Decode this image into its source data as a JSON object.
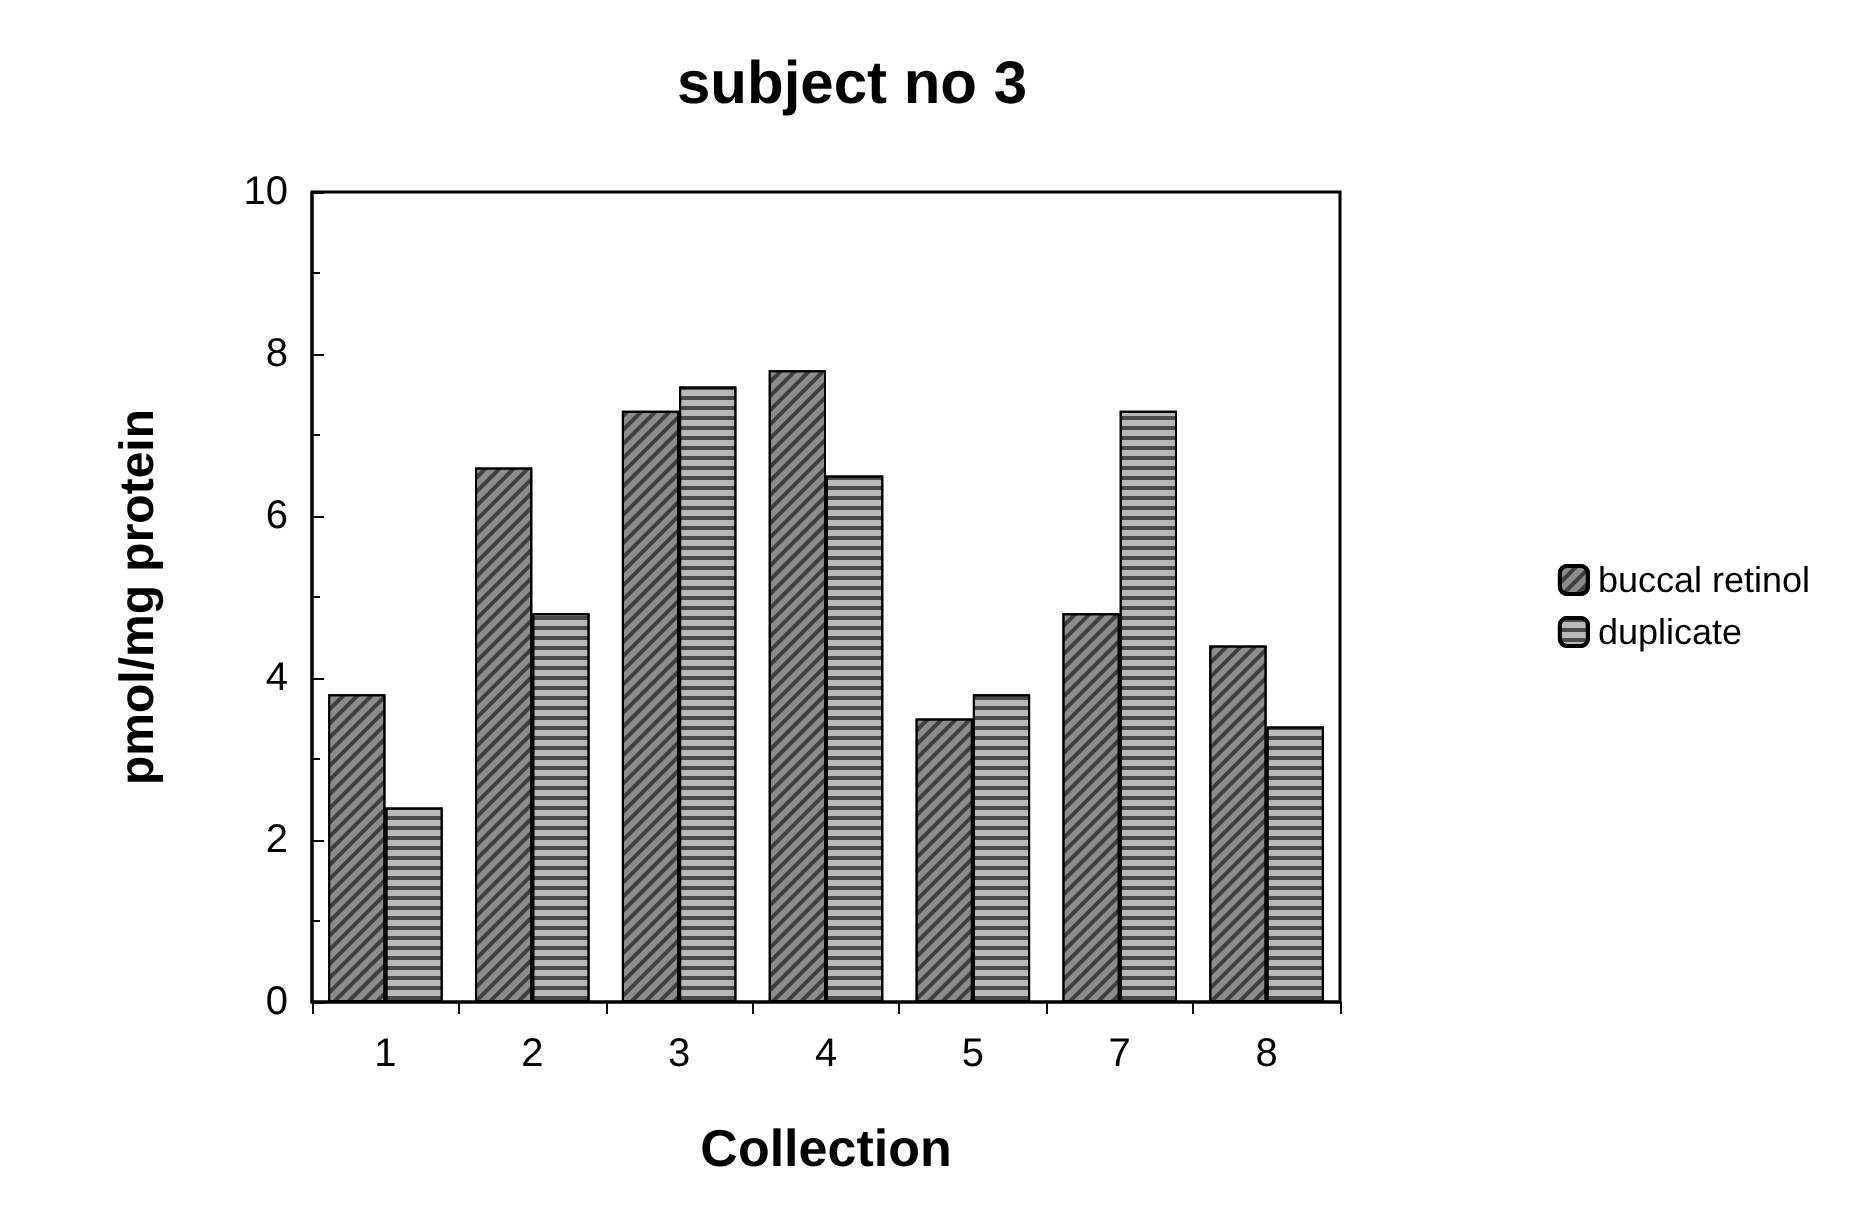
{
  "chart_data": {
    "type": "bar",
    "title": "subject no 3",
    "xlabel": "Collection",
    "ylabel": "pmol/mg protein",
    "categories": [
      "1",
      "2",
      "3",
      "4",
      "5",
      "7",
      "8"
    ],
    "series": [
      {
        "name": "buccal retinol",
        "color": "#8c8c8c",
        "values": [
          3.8,
          6.6,
          7.3,
          7.8,
          3.5,
          4.8,
          4.4
        ]
      },
      {
        "name": "duplicate",
        "color": "#b8b8b8",
        "values": [
          2.4,
          4.8,
          7.6,
          6.5,
          3.8,
          7.3,
          3.4
        ]
      }
    ],
    "ylim": [
      0,
      10
    ],
    "yticks": [
      0,
      2,
      4,
      6,
      8,
      10
    ],
    "grid": false,
    "legend": "right"
  }
}
